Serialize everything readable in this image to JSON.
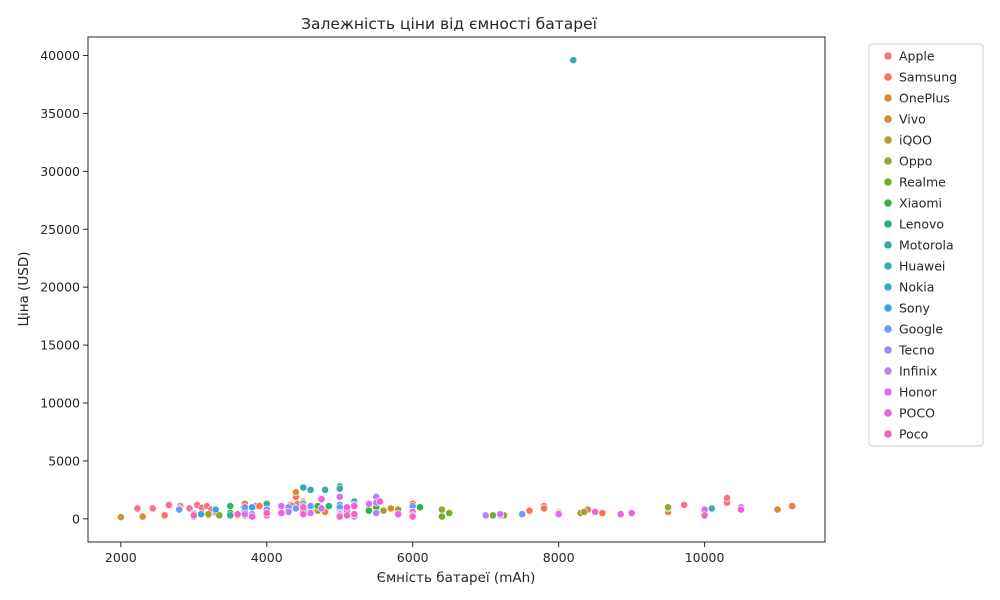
{
  "chart_data": {
    "type": "scatter",
    "title": "Залежність ціни від ємності батареї",
    "xlabel": "Ємність батареї (mAh)",
    "ylabel": "Ціна (USD)",
    "xlim": [
      1550,
      11650
    ],
    "ylim": [
      -2000,
      41600
    ],
    "x_ticks": [
      2000,
      4000,
      6000,
      8000,
      10000
    ],
    "y_ticks": [
      0,
      5000,
      10000,
      15000,
      20000,
      25000,
      30000,
      35000,
      40000
    ],
    "grid": false,
    "legend_position": "outside-right",
    "series": [
      {
        "name": "Apple",
        "color": "#f77189",
        "points": [
          [
            2227,
            900
          ],
          [
            2438,
            900
          ],
          [
            2658,
            1200
          ],
          [
            2815,
            1100
          ],
          [
            2942,
            900
          ],
          [
            3046,
            1200
          ],
          [
            3110,
            950
          ],
          [
            3179,
            1100
          ],
          [
            3240,
            800
          ],
          [
            3687,
            1000
          ],
          [
            3850,
            1100
          ],
          [
            4325,
            1200
          ],
          [
            4422,
            1300
          ],
          [
            4685,
            1100
          ],
          [
            5000,
            1000
          ],
          [
            7800,
            1100
          ],
          [
            9720,
            1200
          ],
          [
            10307,
            1400
          ],
          [
            10307,
            1800
          ]
        ]
      },
      {
        "name": "Samsung",
        "color": "#f7754f",
        "points": [
          [
            2600,
            300
          ],
          [
            3000,
            400
          ],
          [
            3300,
            500
          ],
          [
            3700,
            1300
          ],
          [
            3900,
            1100
          ],
          [
            4000,
            1200
          ],
          [
            4400,
            1900
          ],
          [
            4500,
            1500
          ],
          [
            4700,
            900
          ],
          [
            5000,
            1100
          ],
          [
            5000,
            400
          ],
          [
            6000,
            1300
          ],
          [
            6000,
            700
          ],
          [
            7600,
            700
          ],
          [
            7800,
            900
          ],
          [
            8000,
            600
          ],
          [
            8400,
            800
          ],
          [
            8600,
            500
          ],
          [
            11200,
            1100
          ]
        ]
      },
      {
        "name": "OnePlus",
        "color": "#dc8932",
        "points": [
          [
            2300,
            200
          ],
          [
            3300,
            600
          ],
          [
            3600,
            300
          ],
          [
            4000,
            500
          ],
          [
            4400,
            2300
          ],
          [
            4500,
            1400
          ],
          [
            4600,
            800
          ],
          [
            4800,
            600
          ],
          [
            5000,
            1200
          ],
          [
            5400,
            900
          ],
          [
            5700,
            900
          ],
          [
            6000,
            600
          ],
          [
            8000,
            500
          ],
          [
            11000,
            800
          ]
        ]
      },
      {
        "name": "Vivo",
        "color": "#c39532",
        "points": [
          [
            2000,
            150
          ],
          [
            3000,
            200
          ],
          [
            3200,
            300
          ],
          [
            4000,
            400
          ],
          [
            4500,
            500
          ],
          [
            5000,
            700
          ],
          [
            5000,
            300
          ],
          [
            6000,
            900
          ],
          [
            7200,
            400
          ],
          [
            8000,
            500
          ],
          [
            9500,
            600
          ]
        ]
      },
      {
        "name": "iQOO",
        "color": "#ae9d31",
        "points": [
          [
            4350,
            1100
          ],
          [
            4700,
            700
          ],
          [
            5000,
            900
          ],
          [
            5500,
            600
          ],
          [
            6000,
            700
          ],
          [
            8300,
            500
          ],
          [
            9500,
            900
          ]
        ]
      },
      {
        "name": "Oppo",
        "color": "#97a431",
        "points": [
          [
            3200,
            400
          ],
          [
            4000,
            800
          ],
          [
            4500,
            1000
          ],
          [
            5000,
            600
          ],
          [
            5600,
            700
          ],
          [
            5800,
            800
          ],
          [
            6400,
            800
          ],
          [
            8350,
            600
          ],
          [
            9500,
            1000
          ]
        ]
      },
      {
        "name": "Realme",
        "color": "#77ab31",
        "points": [
          [
            3350,
            300
          ],
          [
            4500,
            600
          ],
          [
            5000,
            500
          ],
          [
            5400,
            800
          ],
          [
            6000,
            500
          ],
          [
            6400,
            200
          ],
          [
            6500,
            500
          ],
          [
            7100,
            300
          ],
          [
            7250,
            300
          ]
        ]
      },
      {
        "name": "Xiaomi",
        "color": "#31b33b",
        "points": [
          [
            3500,
            500
          ],
          [
            4000,
            300
          ],
          [
            4500,
            900
          ],
          [
            4700,
            1100
          ],
          [
            5000,
            800
          ],
          [
            5400,
            700
          ],
          [
            5500,
            1000
          ],
          [
            6100,
            1000
          ]
        ]
      },
      {
        "name": "Lenovo",
        "color": "#33b07a",
        "points": [
          [
            3500,
            1100
          ],
          [
            4500,
            1300
          ],
          [
            4850,
            1100
          ],
          [
            5100,
            600
          ],
          [
            6000,
            800
          ]
        ]
      },
      {
        "name": "Motorola",
        "color": "#35ad9c",
        "points": [
          [
            3500,
            300
          ],
          [
            4000,
            1300
          ],
          [
            4500,
            600
          ],
          [
            5000,
            400
          ],
          [
            5200,
            1500
          ]
        ]
      },
      {
        "name": "Huawei",
        "color": "#36abae",
        "points": [
          [
            3700,
            300
          ],
          [
            4000,
            500
          ],
          [
            4300,
            900
          ],
          [
            4500,
            2700
          ],
          [
            4600,
            2500
          ],
          [
            4800,
            2500
          ],
          [
            5000,
            2800
          ],
          [
            5000,
            2600
          ],
          [
            5200,
            1200
          ],
          [
            8200,
            39600
          ]
        ]
      },
      {
        "name": "Nokia",
        "color": "#38a9c5",
        "points": [
          [
            2800,
            900
          ],
          [
            3000,
            500
          ],
          [
            3100,
            400
          ],
          [
            3700,
            900
          ],
          [
            4000,
            400
          ],
          [
            4500,
            700
          ],
          [
            4600,
            500
          ],
          [
            10100,
            900
          ]
        ]
      },
      {
        "name": "Sony",
        "color": "#3ba3ec",
        "points": [
          [
            3300,
            800
          ],
          [
            3700,
            700
          ],
          [
            3800,
            1000
          ],
          [
            4000,
            300
          ],
          [
            4500,
            1100
          ],
          [
            5000,
            1200
          ],
          [
            6000,
            1000
          ]
        ]
      },
      {
        "name": "Google",
        "color": "#6e9bf4",
        "points": [
          [
            2800,
            800
          ],
          [
            3000,
            400
          ],
          [
            3700,
            1000
          ],
          [
            4000,
            600
          ],
          [
            4400,
            900
          ],
          [
            4600,
            1100
          ],
          [
            5000,
            1000
          ],
          [
            6000,
            1100
          ],
          [
            7500,
            400
          ]
        ]
      },
      {
        "name": "Tecno",
        "color": "#968ff4",
        "points": [
          [
            3800,
            400
          ],
          [
            4000,
            800
          ],
          [
            4300,
            1000
          ],
          [
            5000,
            500
          ],
          [
            6000,
            500
          ],
          [
            7000,
            300
          ]
        ]
      },
      {
        "name": "Infinix",
        "color": "#b584f4",
        "points": [
          [
            3000,
            200
          ],
          [
            4000,
            400
          ],
          [
            4300,
            600
          ],
          [
            5000,
            400
          ],
          [
            5200,
            200
          ],
          [
            5500,
            1900
          ],
          [
            5500,
            500
          ],
          [
            7000,
            300
          ],
          [
            7200,
            300
          ],
          [
            10500,
            1000
          ]
        ]
      },
      {
        "name": "Honor",
        "color": "#d670f4",
        "points": [
          [
            3700,
            400
          ],
          [
            4200,
            1100
          ],
          [
            4600,
            500
          ],
          [
            4750,
            900
          ],
          [
            5000,
            1900
          ],
          [
            5100,
            700
          ],
          [
            5400,
            1300
          ],
          [
            5500,
            1400
          ],
          [
            6000,
            600
          ],
          [
            7200,
            400
          ],
          [
            8000,
            400
          ],
          [
            9000,
            500
          ],
          [
            10000,
            800
          ]
        ]
      },
      {
        "name": "POCO",
        "color": "#f45fdf",
        "points": [
          [
            3800,
            200
          ],
          [
            4000,
            300
          ],
          [
            4200,
            500
          ],
          [
            4500,
            400
          ],
          [
            4750,
            1700
          ],
          [
            5000,
            300
          ],
          [
            5100,
            1000
          ],
          [
            5200,
            1100
          ],
          [
            5550,
            1500
          ],
          [
            5800,
            400
          ],
          [
            6000,
            300
          ],
          [
            8500,
            600
          ],
          [
            8850,
            400
          ],
          [
            9000,
            500
          ],
          [
            10500,
            800
          ]
        ]
      },
      {
        "name": "Poco",
        "color": "#f565bb",
        "points": [
          [
            3000,
            300
          ],
          [
            3600,
            400
          ],
          [
            4000,
            500
          ],
          [
            4500,
            1000
          ],
          [
            5000,
            200
          ],
          [
            5100,
            300
          ],
          [
            5200,
            400
          ],
          [
            6000,
            200
          ],
          [
            10000,
            300
          ]
        ]
      }
    ]
  }
}
